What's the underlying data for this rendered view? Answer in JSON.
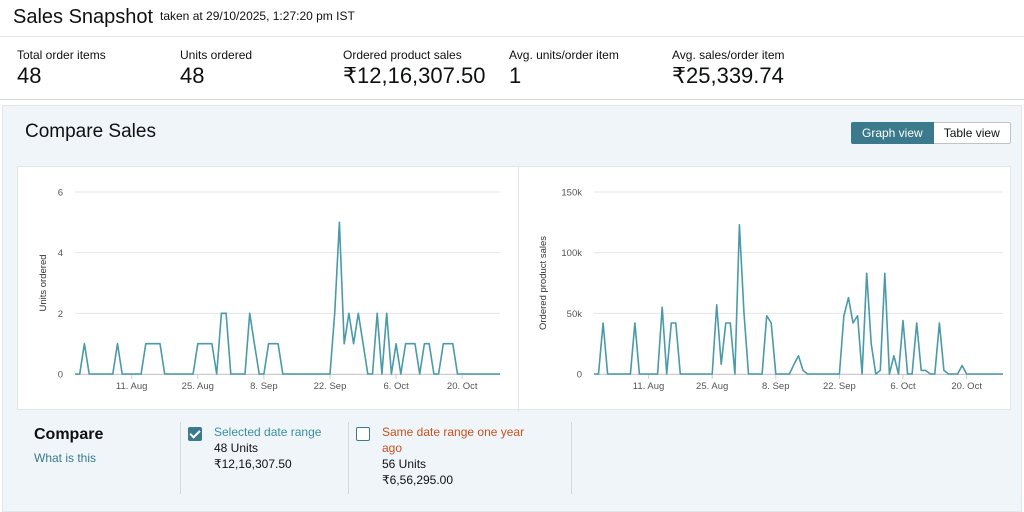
{
  "header": {
    "title": "Sales Snapshot",
    "taken": "taken at 29/10/2025, 1:27:20 pm IST"
  },
  "metrics": [
    {
      "label": "Total order items",
      "value": "48"
    },
    {
      "label": "Units ordered",
      "value": "48"
    },
    {
      "label": "Ordered product sales",
      "value": "₹12,16,307.50"
    },
    {
      "label": "Avg. units/order item",
      "value": "1"
    },
    {
      "label": "Avg. sales/order item",
      "value": "₹25,339.74"
    }
  ],
  "compare": {
    "title": "Compare Sales",
    "graph_view": "Graph view",
    "table_view": "Table view"
  },
  "legend": {
    "title": "Compare",
    "link": "What is this",
    "selected": {
      "label": "Selected date range",
      "units": "48 Units",
      "sales": "₹12,16,307.50",
      "checked": true
    },
    "last_year": {
      "label_line1": "Same date range one year",
      "label_line2": "ago",
      "units": "56 Units",
      "sales": "₹6,56,295.00",
      "checked": false
    }
  },
  "colors": {
    "accent": "#3a7a8c",
    "line": "#4a9aa8",
    "last_year": "#c7511f"
  },
  "chart_data": [
    {
      "type": "line",
      "title": "",
      "ylabel": "Units ordered",
      "xlabel": "",
      "ylim": [
        0,
        6
      ],
      "yticks": [
        "0",
        "2",
        "4",
        "6"
      ],
      "x_tick_labels": [
        "11. Aug",
        "25. Aug",
        "8. Sep",
        "22. Sep",
        "6. Oct",
        "20. Oct"
      ],
      "x_range": [
        "2025-07-30",
        "2025-10-28"
      ],
      "grid": true,
      "series": [
        {
          "points": [
            [
              "2025-07-30",
              0
            ],
            [
              "2025-07-31",
              0
            ],
            [
              "2025-08-01",
              1
            ],
            [
              "2025-08-02",
              0
            ],
            [
              "2025-08-03",
              0
            ],
            [
              "2025-08-04",
              0
            ],
            [
              "2025-08-05",
              0
            ],
            [
              "2025-08-06",
              0
            ],
            [
              "2025-08-07",
              0
            ],
            [
              "2025-08-08",
              1
            ],
            [
              "2025-08-09",
              0
            ],
            [
              "2025-08-10",
              0
            ],
            [
              "2025-08-11",
              0
            ],
            [
              "2025-08-12",
              0
            ],
            [
              "2025-08-13",
              0
            ],
            [
              "2025-08-14",
              1
            ],
            [
              "2025-08-15",
              1
            ],
            [
              "2025-08-16",
              1
            ],
            [
              "2025-08-17",
              1
            ],
            [
              "2025-08-18",
              0
            ],
            [
              "2025-08-19",
              0
            ],
            [
              "2025-08-20",
              0
            ],
            [
              "2025-08-21",
              0
            ],
            [
              "2025-08-22",
              0
            ],
            [
              "2025-08-23",
              0
            ],
            [
              "2025-08-24",
              0
            ],
            [
              "2025-08-25",
              1
            ],
            [
              "2025-08-26",
              1
            ],
            [
              "2025-08-27",
              1
            ],
            [
              "2025-08-28",
              1
            ],
            [
              "2025-08-29",
              0
            ],
            [
              "2025-08-30",
              2
            ],
            [
              "2025-08-31",
              2
            ],
            [
              "2025-09-01",
              0
            ],
            [
              "2025-09-02",
              0
            ],
            [
              "2025-09-03",
              0
            ],
            [
              "2025-09-04",
              0
            ],
            [
              "2025-09-05",
              2
            ],
            [
              "2025-09-06",
              1
            ],
            [
              "2025-09-07",
              0
            ],
            [
              "2025-09-08",
              0
            ],
            [
              "2025-09-09",
              1
            ],
            [
              "2025-09-10",
              1
            ],
            [
              "2025-09-11",
              1
            ],
            [
              "2025-09-12",
              0
            ],
            [
              "2025-09-13",
              0
            ],
            [
              "2025-09-14",
              0
            ],
            [
              "2025-09-15",
              0
            ],
            [
              "2025-09-16",
              0
            ],
            [
              "2025-09-17",
              0
            ],
            [
              "2025-09-18",
              0
            ],
            [
              "2025-09-19",
              0
            ],
            [
              "2025-09-20",
              0
            ],
            [
              "2025-09-21",
              0
            ],
            [
              "2025-09-22",
              0
            ],
            [
              "2025-09-23",
              2
            ],
            [
              "2025-09-24",
              5
            ],
            [
              "2025-09-25",
              1
            ],
            [
              "2025-09-26",
              2
            ],
            [
              "2025-09-27",
              1
            ],
            [
              "2025-09-28",
              2
            ],
            [
              "2025-09-29",
              1
            ],
            [
              "2025-09-30",
              0
            ],
            [
              "2025-10-01",
              0
            ],
            [
              "2025-10-02",
              2
            ],
            [
              "2025-10-03",
              0
            ],
            [
              "2025-10-04",
              2
            ],
            [
              "2025-10-05",
              0
            ],
            [
              "2025-10-06",
              1
            ],
            [
              "2025-10-07",
              0
            ],
            [
              "2025-10-08",
              1
            ],
            [
              "2025-10-09",
              1
            ],
            [
              "2025-10-10",
              1
            ],
            [
              "2025-10-11",
              0
            ],
            [
              "2025-10-12",
              1
            ],
            [
              "2025-10-13",
              1
            ],
            [
              "2025-10-14",
              0
            ],
            [
              "2025-10-15",
              0
            ],
            [
              "2025-10-16",
              1
            ],
            [
              "2025-10-17",
              1
            ],
            [
              "2025-10-18",
              1
            ],
            [
              "2025-10-19",
              0
            ],
            [
              "2025-10-20",
              0
            ],
            [
              "2025-10-21",
              0
            ],
            [
              "2025-10-22",
              0
            ],
            [
              "2025-10-23",
              0
            ],
            [
              "2025-10-24",
              0
            ],
            [
              "2025-10-25",
              0
            ],
            [
              "2025-10-26",
              0
            ],
            [
              "2025-10-27",
              0
            ],
            [
              "2025-10-28",
              0
            ]
          ]
        }
      ]
    },
    {
      "type": "line",
      "title": "",
      "ylabel": "Ordered product sales",
      "xlabel": "",
      "ylim": [
        0,
        150000
      ],
      "yticks": [
        "0",
        "50k",
        "100k",
        "150k"
      ],
      "x_tick_labels": [
        "11. Aug",
        "25. Aug",
        "8. Sep",
        "22. Sep",
        "6. Oct",
        "20. Oct"
      ],
      "x_range": [
        "2025-07-30",
        "2025-10-28"
      ],
      "grid": true,
      "series": [
        {
          "points": [
            [
              "2025-07-30",
              0
            ],
            [
              "2025-07-31",
              0
            ],
            [
              "2025-08-01",
              42000
            ],
            [
              "2025-08-02",
              0
            ],
            [
              "2025-08-03",
              0
            ],
            [
              "2025-08-04",
              0
            ],
            [
              "2025-08-05",
              0
            ],
            [
              "2025-08-06",
              0
            ],
            [
              "2025-08-07",
              0
            ],
            [
              "2025-08-08",
              42000
            ],
            [
              "2025-08-09",
              0
            ],
            [
              "2025-08-10",
              0
            ],
            [
              "2025-08-11",
              0
            ],
            [
              "2025-08-12",
              0
            ],
            [
              "2025-08-13",
              0
            ],
            [
              "2025-08-14",
              55000
            ],
            [
              "2025-08-15",
              0
            ],
            [
              "2025-08-16",
              42000
            ],
            [
              "2025-08-17",
              42000
            ],
            [
              "2025-08-18",
              0
            ],
            [
              "2025-08-19",
              0
            ],
            [
              "2025-08-20",
              0
            ],
            [
              "2025-08-21",
              0
            ],
            [
              "2025-08-22",
              0
            ],
            [
              "2025-08-23",
              0
            ],
            [
              "2025-08-24",
              0
            ],
            [
              "2025-08-25",
              0
            ],
            [
              "2025-08-26",
              57000
            ],
            [
              "2025-08-27",
              8000
            ],
            [
              "2025-08-28",
              42000
            ],
            [
              "2025-08-29",
              42000
            ],
            [
              "2025-08-30",
              0
            ],
            [
              "2025-08-31",
              123000
            ],
            [
              "2025-09-01",
              50000
            ],
            [
              "2025-09-02",
              0
            ],
            [
              "2025-09-03",
              0
            ],
            [
              "2025-09-04",
              0
            ],
            [
              "2025-09-05",
              0
            ],
            [
              "2025-09-06",
              48000
            ],
            [
              "2025-09-07",
              42000
            ],
            [
              "2025-09-08",
              0
            ],
            [
              "2025-09-09",
              0
            ],
            [
              "2025-09-10",
              0
            ],
            [
              "2025-09-11",
              0
            ],
            [
              "2025-09-12",
              8000
            ],
            [
              "2025-09-13",
              15000
            ],
            [
              "2025-09-14",
              3000
            ],
            [
              "2025-09-15",
              0
            ],
            [
              "2025-09-16",
              0
            ],
            [
              "2025-09-17",
              0
            ],
            [
              "2025-09-18",
              0
            ],
            [
              "2025-09-19",
              0
            ],
            [
              "2025-09-20",
              0
            ],
            [
              "2025-09-21",
              0
            ],
            [
              "2025-09-22",
              0
            ],
            [
              "2025-09-23",
              48000
            ],
            [
              "2025-09-24",
              63000
            ],
            [
              "2025-09-25",
              42000
            ],
            [
              "2025-09-26",
              48000
            ],
            [
              "2025-09-27",
              0
            ],
            [
              "2025-09-28",
              83000
            ],
            [
              "2025-09-29",
              25000
            ],
            [
              "2025-09-30",
              0
            ],
            [
              "2025-10-01",
              3000
            ],
            [
              "2025-10-02",
              83000
            ],
            [
              "2025-10-03",
              0
            ],
            [
              "2025-10-04",
              15000
            ],
            [
              "2025-10-05",
              0
            ],
            [
              "2025-10-06",
              44000
            ],
            [
              "2025-10-07",
              0
            ],
            [
              "2025-10-08",
              0
            ],
            [
              "2025-10-09",
              42000
            ],
            [
              "2025-10-10",
              3000
            ],
            [
              "2025-10-11",
              3000
            ],
            [
              "2025-10-12",
              0
            ],
            [
              "2025-10-13",
              0
            ],
            [
              "2025-10-14",
              42000
            ],
            [
              "2025-10-15",
              3000
            ],
            [
              "2025-10-16",
              0
            ],
            [
              "2025-10-17",
              0
            ],
            [
              "2025-10-18",
              0
            ],
            [
              "2025-10-19",
              7000
            ],
            [
              "2025-10-20",
              0
            ],
            [
              "2025-10-21",
              0
            ],
            [
              "2025-10-22",
              0
            ],
            [
              "2025-10-23",
              0
            ],
            [
              "2025-10-24",
              0
            ],
            [
              "2025-10-25",
              0
            ],
            [
              "2025-10-26",
              0
            ],
            [
              "2025-10-27",
              0
            ],
            [
              "2025-10-28",
              0
            ]
          ]
        }
      ]
    }
  ]
}
